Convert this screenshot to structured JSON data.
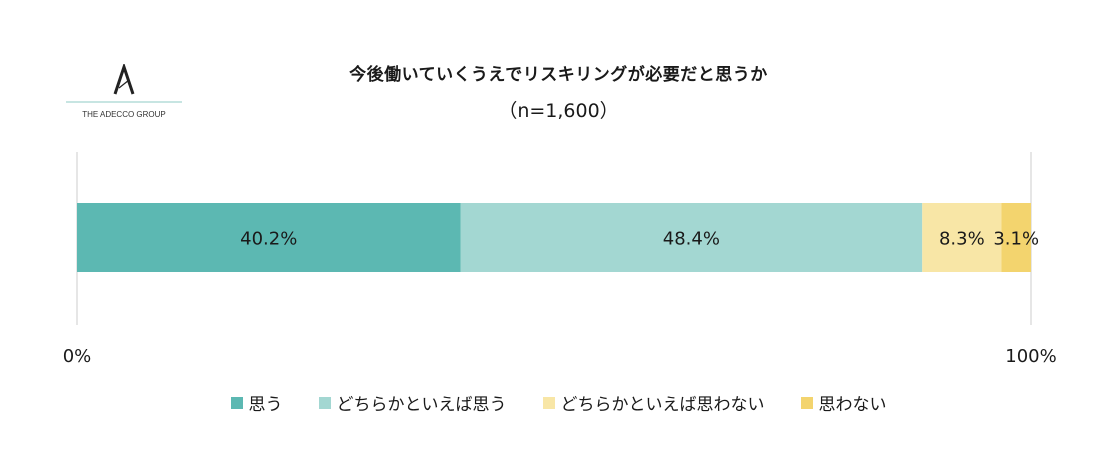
{
  "logo": {
    "mark": "A",
    "text": "THE ADECCO GROUP"
  },
  "title": "今後働いていくうえでリスキリングが必要だと思うか",
  "subtitle": "（n=1,600）",
  "chart_data": {
    "type": "bar",
    "orientation": "horizontal-stacked-100",
    "xlim": [
      0,
      100
    ],
    "tick_labels": [
      "0%",
      "100%"
    ],
    "series": [
      {
        "name": "思う",
        "value": 40.2,
        "label": "40.2%",
        "color": "#5cb8b2"
      },
      {
        "name": "どちらかといえば思う",
        "value": 48.4,
        "label": "48.4%",
        "color": "#a3d7d2"
      },
      {
        "name": "どちらかといえば思わない",
        "value": 8.3,
        "label": "8.3%",
        "color": "#f8e6a6"
      },
      {
        "name": "思わない",
        "value": 3.1,
        "label": "3.1%",
        "color": "#f3d46e"
      }
    ],
    "legend_position": "bottom",
    "grid": false
  }
}
